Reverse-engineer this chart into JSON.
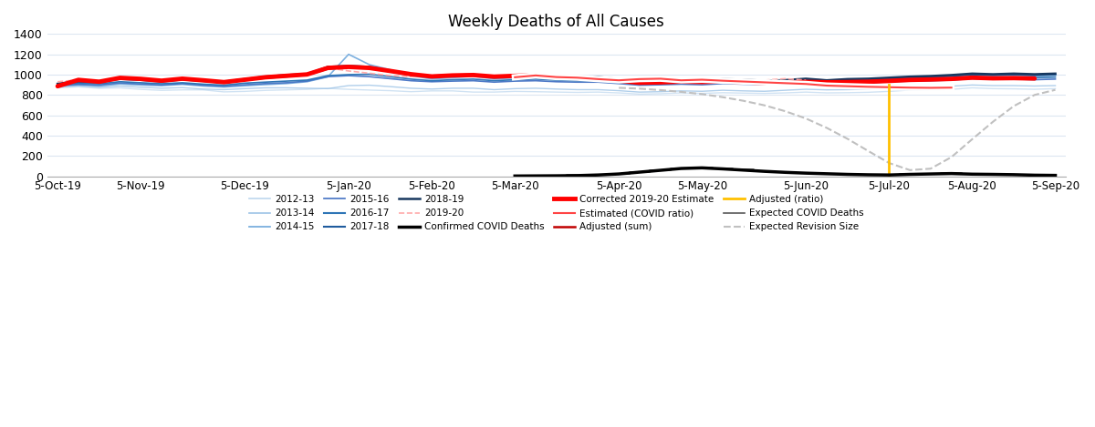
{
  "title": "Weekly Deaths of All Causes",
  "xlabels": [
    "5-Oct-19",
    "5-Nov-19",
    "5-Dec-19",
    "5-Jan-20",
    "5-Feb-20",
    "5-Mar-20",
    "5-Apr-20",
    "5-May-20",
    "5-Jun-20",
    "5-Jul-20",
    "5-Aug-20",
    "5-Sep-20"
  ],
  "xtick_pos": [
    0,
    4,
    9,
    14,
    18,
    22,
    27,
    31,
    36,
    40,
    44,
    48
  ],
  "ylim": [
    0,
    1400
  ],
  "yticks": [
    0,
    200,
    400,
    600,
    800,
    1000,
    1200,
    1400
  ],
  "n_weeks": 49,
  "hist_colors": [
    "#bdd7ee",
    "#9dc3e6",
    "#6fa8dc",
    "#4472c4",
    "#2e75b6",
    "#1f5c9e",
    "#17375e"
  ],
  "hist_lw": [
    1.0,
    1.0,
    1.2,
    1.2,
    1.2,
    1.5,
    1.8
  ],
  "hist_alpha": [
    0.7,
    0.8,
    0.9,
    0.95,
    1.0,
    1.0,
    1.0
  ],
  "hist_names": [
    "2012-13",
    "2013-14",
    "2014-15",
    "2015-16",
    "2016-17",
    "2017-18",
    "2018-19"
  ],
  "s_2012_13": [
    870,
    880,
    865,
    870,
    855,
    845,
    850,
    850,
    830,
    835,
    845,
    850,
    855,
    865,
    855,
    848,
    842,
    832,
    840,
    840,
    828,
    828,
    835,
    832,
    828,
    825,
    828,
    820,
    808,
    812,
    820,
    815,
    822,
    818,
    815,
    820,
    828,
    820,
    822,
    826,
    835,
    848,
    850,
    855,
    870,
    862,
    860,
    856,
    862
  ],
  "s_2013_14": [
    878,
    890,
    876,
    888,
    876,
    866,
    872,
    858,
    852,
    862,
    870,
    870,
    866,
    862,
    892,
    896,
    882,
    866,
    858,
    866,
    866,
    852,
    862,
    866,
    858,
    852,
    852,
    842,
    828,
    832,
    840,
    836,
    846,
    840,
    836,
    846,
    856,
    850,
    852,
    856,
    866,
    876,
    880,
    886,
    898,
    892,
    892,
    888,
    892
  ],
  "s_2014_15": [
    886,
    900,
    888,
    908,
    898,
    892,
    904,
    888,
    878,
    890,
    902,
    912,
    930,
    978,
    1200,
    1098,
    1048,
    990,
    958,
    970,
    984,
    958,
    968,
    982,
    972,
    968,
    962,
    946,
    930,
    936,
    948,
    942,
    952,
    946,
    936,
    946,
    956,
    946,
    952,
    956,
    966,
    976,
    980,
    986,
    1000,
    996,
    996,
    990,
    996
  ],
  "s_2015_16": [
    892,
    904,
    898,
    918,
    908,
    898,
    912,
    896,
    886,
    900,
    912,
    920,
    936,
    980,
    990,
    980,
    960,
    940,
    930,
    936,
    940,
    926,
    936,
    940,
    930,
    926,
    926,
    912,
    896,
    900,
    906,
    900,
    912,
    906,
    900,
    906,
    916,
    906,
    912,
    918,
    930,
    936,
    940,
    946,
    960,
    956,
    956,
    950,
    956
  ],
  "s_2016_17": [
    900,
    916,
    910,
    930,
    920,
    910,
    920,
    906,
    896,
    916,
    926,
    936,
    946,
    990,
    1000,
    1004,
    980,
    956,
    940,
    950,
    956,
    940,
    950,
    956,
    946,
    940,
    940,
    926,
    906,
    910,
    920,
    916,
    926,
    920,
    916,
    920,
    930,
    920,
    926,
    936,
    946,
    950,
    956,
    966,
    976,
    970,
    976,
    970,
    976
  ],
  "s_2017_18": [
    906,
    930,
    926,
    956,
    946,
    930,
    950,
    936,
    920,
    946,
    966,
    980,
    996,
    1056,
    1076,
    1066,
    1030,
    996,
    976,
    986,
    990,
    970,
    980,
    986,
    976,
    970,
    966,
    946,
    926,
    930,
    942,
    936,
    946,
    940,
    930,
    936,
    950,
    936,
    946,
    950,
    960,
    970,
    976,
    986,
    1000,
    994,
    1000,
    994,
    1000
  ],
  "s_2018_19": [
    910,
    936,
    930,
    966,
    956,
    940,
    960,
    944,
    930,
    956,
    980,
    996,
    1006,
    1076,
    1086,
    1076,
    1040,
    1006,
    986,
    996,
    1000,
    982,
    990,
    1000,
    986,
    980,
    976,
    956,
    936,
    940,
    950,
    946,
    956,
    950,
    940,
    946,
    960,
    944,
    956,
    960,
    970,
    980,
    986,
    996,
    1010,
    1004,
    1010,
    1004,
    1010
  ],
  "s_2019_20": [
    930,
    948,
    940,
    960,
    950,
    938,
    954,
    940,
    926,
    950,
    970,
    986,
    996,
    1066,
    1036,
    1014,
    990,
    980,
    994,
    992,
    982,
    990,
    994,
    980,
    978,
    972,
    952,
    938,
    942,
    950,
    944,
    952,
    948,
    940,
    946,
    960,
    946
  ],
  "s_corrected": [
    886,
    948,
    930,
    968,
    958,
    940,
    960,
    944,
    926,
    950,
    974,
    988,
    1002,
    1066,
    1076,
    1066,
    1036,
    1004,
    982,
    992,
    996,
    980,
    988,
    994,
    978,
    966,
    960,
    940,
    920,
    924,
    932,
    928,
    934,
    926,
    916,
    920,
    928,
    924,
    926,
    930,
    938,
    948,
    952,
    958,
    970,
    964,
    966,
    962
  ],
  "s_est_covid_x0": 22,
  "s_est_covid": [
    974,
    992,
    976,
    970,
    956,
    944,
    956,
    960,
    944,
    950,
    940,
    932,
    924,
    916,
    908,
    892,
    886,
    880,
    876,
    872,
    870,
    872
  ],
  "s_adj_sum_x0": 22,
  "s_adj_sum": [
    968,
    988,
    972,
    965,
    950,
    940,
    950,
    954,
    938,
    944,
    934,
    926,
    918,
    910,
    900,
    886,
    880,
    874,
    870,
    866,
    864,
    866
  ],
  "adj_ratio_x": 40,
  "s_covid_x0": 22,
  "s_covid": [
    2,
    3,
    4,
    6,
    12,
    22,
    40,
    58,
    76,
    82,
    72,
    60,
    48,
    38,
    30,
    24,
    18,
    14,
    12,
    18,
    22,
    26,
    20,
    18,
    15,
    10,
    8
  ],
  "s_exp_covid_x0": 22,
  "s_exp_covid": [
    3,
    5,
    7,
    10,
    16,
    26,
    44,
    62,
    80,
    86,
    76,
    64,
    52,
    40,
    32,
    26,
    20,
    16,
    14,
    20,
    24,
    28,
    22,
    20,
    18,
    12,
    10
  ],
  "s_rev_x0": 27,
  "s_rev": [
    870,
    862,
    848,
    830,
    808,
    778,
    742,
    698,
    640,
    568,
    476,
    368,
    248,
    130,
    60,
    74,
    188,
    364,
    536,
    690,
    800,
    850
  ],
  "color_hist": [
    "#bdd7ee",
    "#9dc3e6",
    "#6fa8dc",
    "#4472c4",
    "#2e75b6",
    "#1f5c9e",
    "#17375e"
  ],
  "color_2019_20": "#ffaaaa",
  "color_corrected": "#ff0000",
  "color_est_covid": "#ff4444",
  "color_adj_sum": "#c00000",
  "color_adj_ratio": "#ffc000",
  "color_covid": "#000000",
  "color_exp_covid": "#595959",
  "color_rev": "#c0c0c0",
  "background_color": "#ffffff",
  "grid_color": "#dce6f1"
}
